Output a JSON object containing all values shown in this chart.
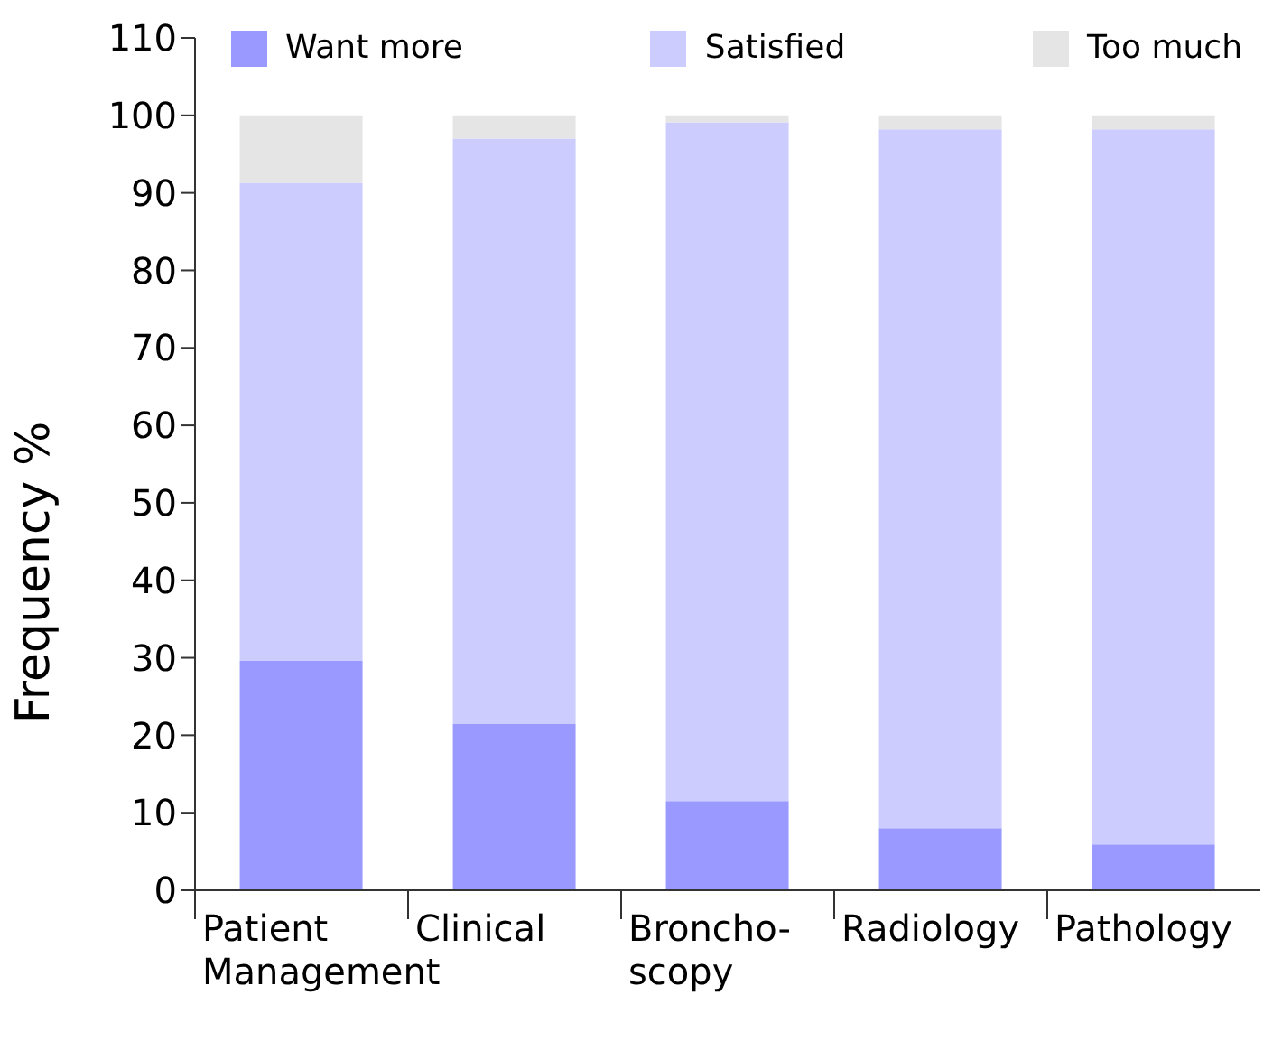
{
  "chart_data": {
    "type": "bar",
    "stacked": true,
    "ylabel": "Frequency %",
    "categories": [
      "Patient Management",
      "Clinical",
      "Broncho-scopy",
      "Radiology",
      "Pathology"
    ],
    "series": [
      {
        "name": "Want more",
        "color": "#9999ff",
        "values": [
          29.6,
          21.5,
          11.5,
          8.0,
          5.9
        ]
      },
      {
        "name": "Satisfied",
        "color": "#ccccff",
        "values": [
          61.7,
          75.5,
          87.6,
          90.2,
          92.3
        ]
      },
      {
        "name": "Too much",
        "color": "#e5e5e5",
        "values": [
          8.7,
          3.0,
          0.9,
          1.8,
          1.8
        ]
      }
    ],
    "ylim": [
      0,
      110
    ],
    "yticks": [
      0,
      10,
      20,
      30,
      40,
      50,
      60,
      70,
      80,
      90,
      100,
      110
    ],
    "legend": "top",
    "grid": false
  }
}
